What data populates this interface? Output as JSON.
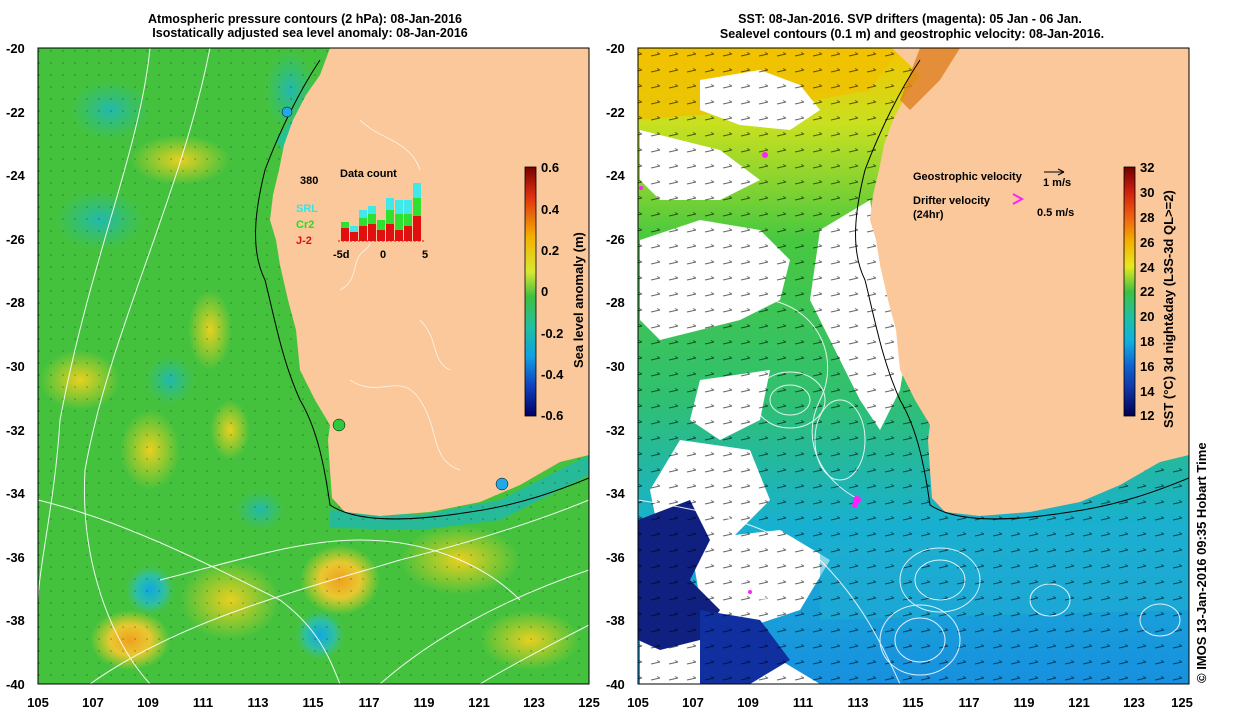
{
  "left_panel": {
    "title_line1": "Atmospheric pressure contours (2 hPa): 08-Jan-2016",
    "title_line2": "Isostatically adjusted sea level anomaly: 08-Jan-2016",
    "colorbar_label": "Sea level anomaly (m)",
    "colorbar_ticks": [
      "0.6",
      "0.4",
      "0.2",
      "0",
      "-0.2",
      "-0.4",
      "-0.6"
    ],
    "data_count": {
      "title": "Data count",
      "max_label": "380",
      "x_ticks": [
        "-5d",
        "0",
        "5"
      ],
      "series": [
        "SRL",
        "Cr2",
        "J-2"
      ]
    }
  },
  "right_panel": {
    "title_line1": "SST: 08-Jan-2016. SVP drifters (magenta): 05 Jan - 06 Jan.",
    "title_line2": "Sealevel contours (0.1 m) and geostrophic velocity: 08-Jan-2016.",
    "colorbar_label": "SST (°C) 3d night&day (L3S-3d QL>=2)",
    "colorbar_ticks": [
      "32",
      "30",
      "28",
      "26",
      "24",
      "22",
      "20",
      "18",
      "16",
      "14",
      "12"
    ],
    "legend": {
      "geo_label": "Geostrophic velocity",
      "geo_value": "1 m/s",
      "drifter_label_1": "Drifter velocity",
      "drifter_label_2": "(24hr)",
      "drifter_value": "0.5 m/s"
    }
  },
  "axes": {
    "lat_ticks": [
      "-20",
      "-22",
      "-24",
      "-26",
      "-28",
      "-30",
      "-32",
      "-34",
      "-36",
      "-38",
      "-40"
    ],
    "lon_ticks": [
      "105",
      "107",
      "109",
      "111",
      "113",
      "115",
      "117",
      "119",
      "121",
      "123",
      "125"
    ]
  },
  "credit": "© IMOS 13-Jan-2016 09:35 Hobart Time",
  "colors": {
    "land": "#fac89b",
    "sla_ocean": "#43c23c",
    "sst_warm": "#f5c400",
    "sst_cool": "#1aa0d8"
  }
}
